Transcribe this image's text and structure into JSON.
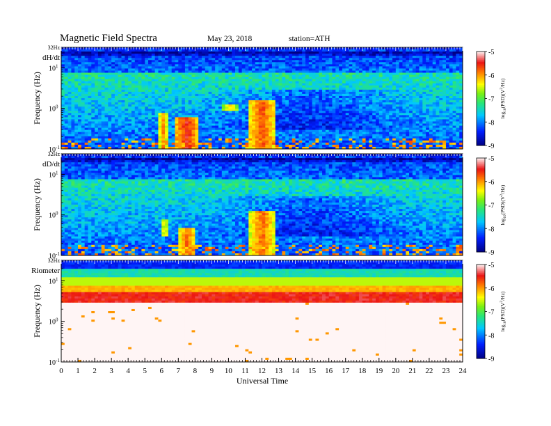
{
  "chart_data": {
    "type": "heatmap",
    "title": "Magnetic  Field  Spectra",
    "date": "May 23, 2018",
    "station": "station=ATH",
    "xlabel": "Universal  Time",
    "xlim": [
      0,
      24
    ],
    "x_ticks": [
      "0",
      "1",
      "2",
      "3",
      "4",
      "5",
      "6",
      "7",
      "8",
      "9",
      "10",
      "11",
      "12",
      "13",
      "14",
      "15",
      "16",
      "17",
      "18",
      "19",
      "20",
      "21",
      "22",
      "23",
      "24"
    ],
    "ylabel": "Frequency  (Hz)",
    "y_scale": "log",
    "ylim_hz": [
      0.1,
      32
    ],
    "y_top_label": "32Hz",
    "y_ticks": [
      {
        "base": "10",
        "exp": "1",
        "value": 10
      },
      {
        "base": "10",
        "exp": "0",
        "value": 1
      },
      {
        "base": "10",
        "exp": "-1",
        "value": 0.1
      }
    ],
    "colorbar": {
      "label": "log10(PSD)(V^2/Hz)",
      "label_base": "log",
      "label_sub": "10",
      "label_rest": "(PSD)(V",
      "label_sup": "2",
      "label_end": "/Hz)",
      "range": [
        -9,
        -5
      ],
      "ticks": [
        "-5",
        "-6",
        "-7",
        "-8",
        "-9"
      ],
      "colormap": "jet-with-white-top"
    },
    "panels": [
      {
        "name": "dH/dt",
        "features": [
          {
            "kind": "enhancement",
            "t_start": 5.8,
            "t_end": 6.4,
            "f_low": 0.1,
            "f_high": 0.8,
            "log10_psd": -6
          },
          {
            "kind": "enhancement",
            "t_start": 6.8,
            "t_end": 8.2,
            "f_low": 0.1,
            "f_high": 0.6,
            "log10_psd": -5.5
          },
          {
            "kind": "enhancement",
            "t_start": 11.2,
            "t_end": 12.8,
            "f_low": 0.1,
            "f_high": 1.5,
            "log10_psd": -5.7
          },
          {
            "kind": "tone",
            "t_start": 9.6,
            "t_end": 10.6,
            "f_low": 0.9,
            "f_high": 1.2,
            "log10_psd": -6.2
          }
        ]
      },
      {
        "name": "dD/dt",
        "features": [
          {
            "kind": "enhancement",
            "t_start": 6.0,
            "t_end": 6.4,
            "f_low": 0.3,
            "f_high": 0.8,
            "log10_psd": -6.2
          },
          {
            "kind": "enhancement",
            "t_start": 7.0,
            "t_end": 8.1,
            "f_low": 0.1,
            "f_high": 0.5,
            "log10_psd": -5.8
          },
          {
            "kind": "enhancement",
            "t_start": 11.3,
            "t_end": 12.8,
            "f_low": 0.1,
            "f_high": 1.2,
            "log10_psd": -5.8
          }
        ]
      },
      {
        "name": "Riometer",
        "features": [
          {
            "kind": "band",
            "f_low": 0.5,
            "f_high": 8,
            "log10_psd": -6
          }
        ]
      }
    ]
  }
}
